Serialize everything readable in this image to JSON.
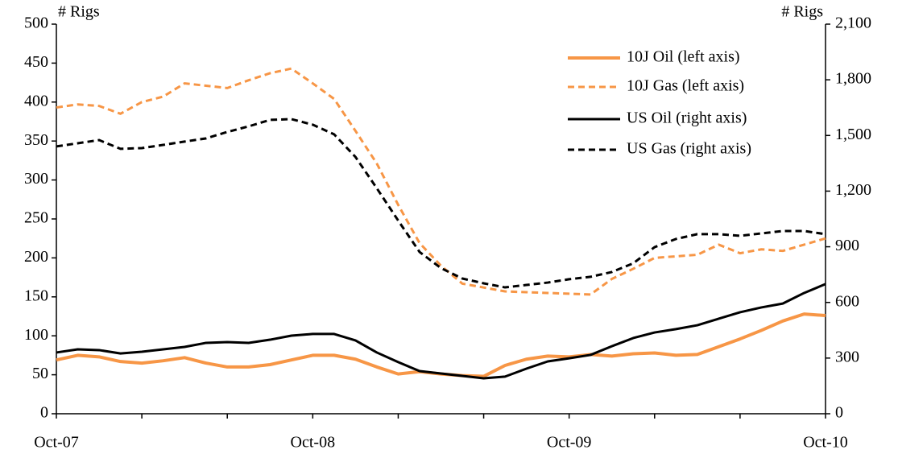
{
  "chart_data": {
    "type": "line",
    "y_label": "# Rigs",
    "y2_label": "# Rigs",
    "categories": [
      "Oct-07",
      null,
      null,
      null,
      null,
      null,
      null,
      null,
      null,
      null,
      null,
      null,
      "Oct-08",
      null,
      null,
      null,
      null,
      null,
      null,
      null,
      null,
      null,
      null,
      null,
      "Oct-09",
      null,
      null,
      null,
      null,
      null,
      null,
      null,
      null,
      null,
      null,
      null,
      "Oct-10"
    ],
    "series": [
      {
        "name": "10J Oil (left axis)",
        "color": "#f79646",
        "style": "solid",
        "width": 4,
        "axis": "y",
        "values": [
          69,
          75,
          73,
          67,
          65,
          68,
          72,
          65,
          60,
          60,
          63,
          69,
          75,
          75,
          70,
          60,
          51,
          54,
          51,
          49,
          48,
          62,
          70,
          74,
          73,
          76,
          74,
          77,
          78,
          75,
          76,
          86,
          96,
          107,
          119,
          128,
          126
        ]
      },
      {
        "name": "10J Gas (left axis)",
        "color": "#f79646",
        "style": "dashed",
        "width": 3,
        "axis": "y",
        "values": [
          393,
          397,
          395,
          385,
          400,
          407,
          424,
          421,
          418,
          428,
          437,
          443,
          424,
          404,
          363,
          321,
          268,
          219,
          190,
          167,
          162,
          157,
          156,
          155,
          154,
          153,
          173,
          186,
          200,
          202,
          204,
          217,
          206,
          211,
          209,
          217,
          225
        ]
      },
      {
        "name": "US Oil (right axis)",
        "color": "#000000",
        "style": "solid",
        "width": 3,
        "axis": "y2",
        "values": [
          330,
          347,
          343,
          325,
          334,
          347,
          360,
          382,
          386,
          382,
          399,
          421,
          430,
          430,
          395,
          330,
          278,
          230,
          217,
          204,
          191,
          200,
          243,
          282,
          299,
          317,
          364,
          408,
          438,
          456,
          477,
          512,
          547,
          573,
          594,
          651,
          699
        ]
      },
      {
        "name": "US Gas (right axis)",
        "color": "#000000",
        "style": "dashed",
        "width": 3,
        "axis": "y2",
        "values": [
          1441,
          1458,
          1475,
          1428,
          1432,
          1449,
          1467,
          1484,
          1519,
          1549,
          1584,
          1588,
          1558,
          1506,
          1384,
          1215,
          1041,
          872,
          785,
          729,
          703,
          681,
          694,
          707,
          725,
          738,
          764,
          811,
          898,
          942,
          968,
          968,
          959,
          972,
          985,
          985,
          968
        ]
      }
    ],
    "ylim": [
      0,
      500
    ],
    "yticks": [
      0,
      50,
      100,
      150,
      200,
      250,
      300,
      350,
      400,
      450,
      500
    ],
    "y2lim": [
      0,
      2100
    ],
    "y2ticks": [
      0,
      300,
      600,
      900,
      {
        "value": 1200,
        "label": "1,200"
      },
      {
        "value": 1500,
        "label": "1,500"
      },
      {
        "value": 1800,
        "label": "1,800"
      },
      {
        "value": 2100,
        "label": "2,100"
      }
    ],
    "x_tick_every": 4,
    "legend": "upper right"
  }
}
